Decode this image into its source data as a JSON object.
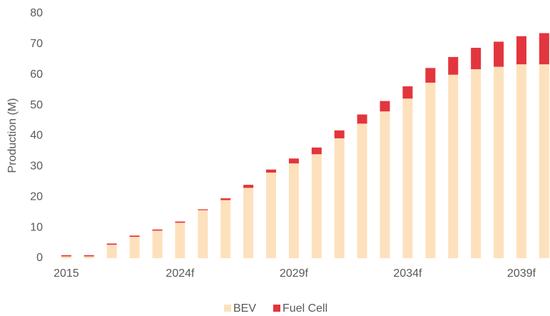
{
  "chart_data": {
    "type": "stacked-bar",
    "y_label": "Production (M)",
    "categories": [
      "2015",
      null,
      null,
      null,
      null,
      "2024f",
      null,
      null,
      null,
      null,
      "2029f",
      null,
      null,
      null,
      null,
      "2034f",
      null,
      null,
      null,
      null,
      "2039f",
      null
    ],
    "series": [
      {
        "name": "BEV",
        "color": "#fde1bd",
        "values": [
          0.6,
          0.6,
          4.4,
          7.0,
          9.0,
          11.6,
          15.7,
          19.0,
          23.0,
          28.0,
          31.0,
          34.0,
          39.2,
          44.0,
          48.0,
          52.2,
          57.4,
          60.0,
          61.8,
          62.6,
          63.4,
          63.4
        ]
      },
      {
        "name": "Fuel Cell",
        "color": "#e3353d",
        "values": [
          0.4,
          0.4,
          0.4,
          0.4,
          0.4,
          0.4,
          0.3,
          0.6,
          1.0,
          1.0,
          1.6,
          2.2,
          2.6,
          3.0,
          3.4,
          4.0,
          4.8,
          5.8,
          7.0,
          8.2,
          9.2,
          10.2
        ]
      }
    ],
    "ylim": [
      0,
      80
    ],
    "yticks": [
      0,
      10,
      20,
      30,
      40,
      50,
      60,
      70,
      80
    ],
    "grid": false,
    "legend": "bottom"
  }
}
